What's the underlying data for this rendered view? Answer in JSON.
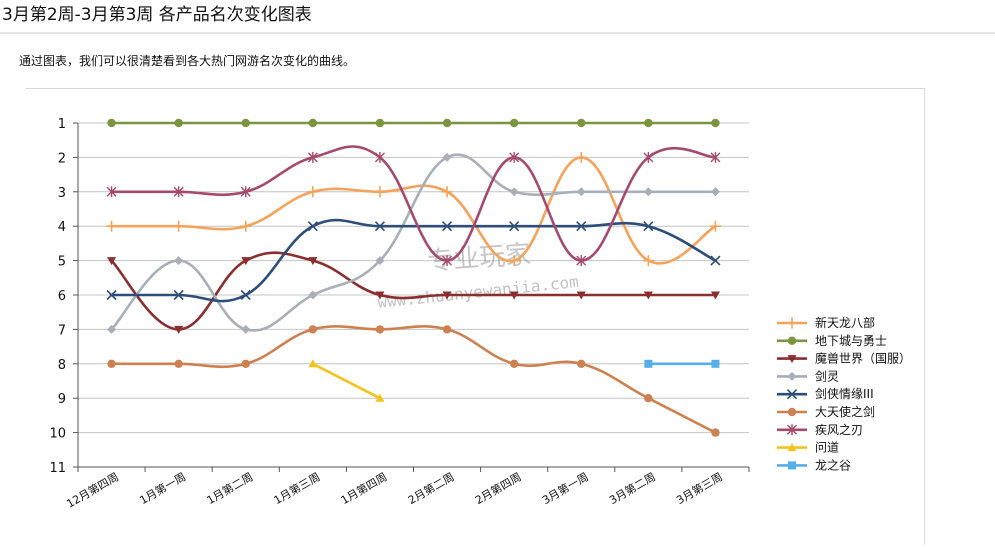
{
  "header": {
    "title": "3月第2周-3月第3周 各产品名次变化图表",
    "intro": "通过图表，我们可以很清楚看到各大热门网游名次变化的曲线。"
  },
  "watermark": {
    "line1": "专业玩家",
    "line2": "www.zhuanyewanjia.com"
  },
  "chart_data": {
    "type": "line",
    "categories": [
      "12月第四周",
      "1月第一周",
      "1月第二周",
      "1月第三周",
      "1月第四周",
      "2月第二周",
      "2月第四周",
      "3月第一周",
      "3月第二周",
      "3月第三周"
    ],
    "ylim": [
      1,
      11
    ],
    "y_reversed": true,
    "y_ticks": [
      "1",
      "2",
      "3",
      "4",
      "5",
      "6",
      "7",
      "8",
      "9",
      "10",
      "11"
    ],
    "grid": true,
    "legend_position": "right",
    "series": [
      {
        "name": "新天龙八部",
        "color": "#f5a35a",
        "marker": "plus",
        "values": [
          4,
          4,
          4,
          3,
          3,
          3,
          5,
          2,
          5,
          4
        ]
      },
      {
        "name": "地下城与勇士",
        "color": "#7a9440",
        "marker": "circle",
        "values": [
          1,
          1,
          1,
          1,
          1,
          1,
          1,
          1,
          1,
          1
        ]
      },
      {
        "name": "魔兽世界（国服）",
        "color": "#8a2e2e",
        "marker": "triangle-down",
        "values": [
          5,
          7,
          5,
          5,
          6,
          6,
          6,
          6,
          6,
          6
        ]
      },
      {
        "name": "剑灵",
        "color": "#a9afb8",
        "marker": "diamond",
        "values": [
          7,
          5,
          7,
          6,
          5,
          2,
          3,
          3,
          3,
          3
        ]
      },
      {
        "name": "剑侠情缘III",
        "color": "#2d4e78",
        "marker": "x",
        "values": [
          6,
          6,
          6,
          4,
          4,
          4,
          4,
          4,
          4,
          5
        ]
      },
      {
        "name": "大天使之剑",
        "color": "#cd8150",
        "marker": "circle",
        "values": [
          8,
          8,
          8,
          7,
          7,
          7,
          8,
          8,
          9,
          10
        ]
      },
      {
        "name": "疾风之刃",
        "color": "#a44a6e",
        "marker": "star",
        "values": [
          3,
          3,
          3,
          2,
          2,
          5,
          2,
          5,
          2,
          2
        ]
      },
      {
        "name": "问道",
        "color": "#f5c21b",
        "marker": "triangle-up",
        "values": [
          null,
          null,
          null,
          8,
          9,
          null,
          null,
          null,
          null,
          null
        ]
      },
      {
        "name": "龙之谷",
        "color": "#55aee8",
        "marker": "square",
        "values": [
          null,
          null,
          null,
          null,
          null,
          null,
          null,
          null,
          8,
          8
        ]
      }
    ]
  }
}
